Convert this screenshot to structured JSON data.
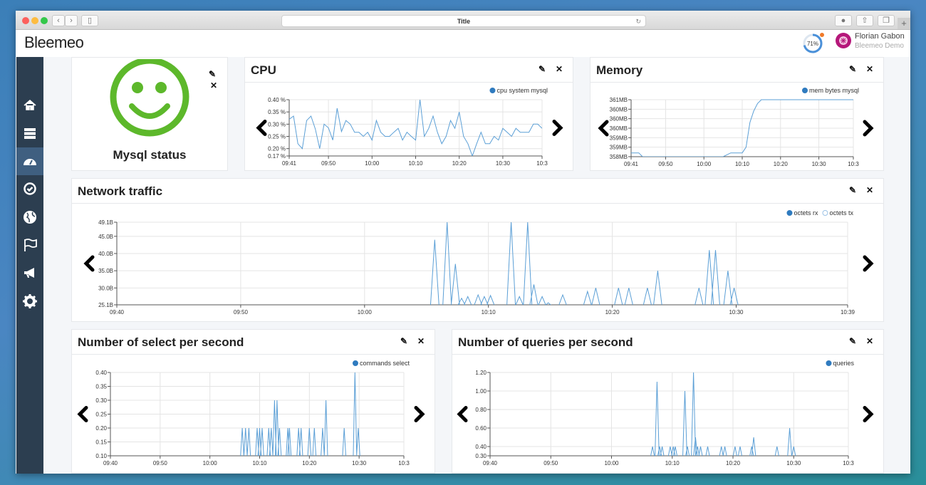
{
  "browser": {
    "title": "Title"
  },
  "app": {
    "logo": "Bleemeo",
    "gauge_percent": 71,
    "gauge_label": "71%",
    "user_name": "Florian Gabon",
    "user_org": "Bleemeo Demo"
  },
  "sidebar": {
    "items": [
      {
        "icon": "home-icon"
      },
      {
        "icon": "servers-icon"
      },
      {
        "icon": "dashboard-icon",
        "active": true
      },
      {
        "icon": "check-circle-icon"
      },
      {
        "icon": "globe-icon"
      },
      {
        "icon": "flag-icon"
      },
      {
        "icon": "megaphone-icon"
      },
      {
        "icon": "gear-icon"
      }
    ]
  },
  "colors": {
    "accent": "#2f7bbf",
    "line": "#5b9fd6",
    "status_ok": "#5db82b",
    "sidebar": "#2c3e50",
    "sidebar_active": "#3f5f80"
  },
  "status_widget": {
    "label": "Mysql status",
    "state": "ok",
    "icon": "smiley-icon"
  },
  "panels": {
    "cpu": "CPU",
    "memory": "Memory",
    "network": "Network traffic",
    "select": "Number of select per second",
    "queries": "Number of queries per second"
  },
  "chart_data": [
    {
      "id": "cpu",
      "type": "line",
      "title": "CPU",
      "legend": [
        {
          "name": "cpu system mysql",
          "style": "filled"
        }
      ],
      "legend_position": "top-right",
      "grid": true,
      "xlim": [
        "09:41",
        "10:39"
      ],
      "ylim": [
        0.17,
        0.4
      ],
      "xticks": [
        {
          "t": "09:41",
          "label": "09:41"
        },
        {
          "t": "09:50",
          "label": "09:50"
        },
        {
          "t": "10:00",
          "label": "10:00"
        },
        {
          "t": "10:10",
          "label": "10:10"
        },
        {
          "t": "10:20",
          "label": "10:20"
        },
        {
          "t": "10:30",
          "label": "10:30"
        },
        {
          "t": "10:39",
          "label": "10:3"
        }
      ],
      "yticks": [
        {
          "v": 0.17,
          "label": "0.17 %"
        },
        {
          "v": 0.2,
          "label": "0.20 %"
        },
        {
          "v": 0.25,
          "label": "0.25 %"
        },
        {
          "v": 0.3,
          "label": "0.30 %"
        },
        {
          "v": 0.35,
          "label": "0.35 %"
        },
        {
          "v": 0.4,
          "label": "0.40 %"
        }
      ],
      "series": [
        {
          "name": "cpu system mysql",
          "start": "09:41",
          "step_minutes": 1,
          "values": [
            0.32,
            0.333,
            0.22,
            0.2,
            0.315,
            0.333,
            0.28,
            0.2,
            0.3,
            0.285,
            0.235,
            0.365,
            0.27,
            0.315,
            0.3,
            0.267,
            0.267,
            0.25,
            0.267,
            0.235,
            0.315,
            0.267,
            0.25,
            0.25,
            0.267,
            0.283,
            0.235,
            0.267,
            0.25,
            0.235,
            0.4,
            0.25,
            0.283,
            0.333,
            0.267,
            0.22,
            0.25,
            0.315,
            0.283,
            0.35,
            0.25,
            0.22,
            0.17,
            0.22,
            0.267,
            0.22,
            0.22,
            0.25,
            0.235,
            0.283,
            0.267,
            0.25,
            0.283,
            0.267,
            0.267,
            0.267,
            0.3,
            0.3,
            0.283
          ]
        }
      ]
    },
    {
      "id": "memory",
      "type": "line",
      "title": "Memory",
      "legend": [
        {
          "name": "mem bytes mysql",
          "style": "filled"
        }
      ],
      "legend_position": "top-right",
      "grid": true,
      "xlim": [
        "09:41",
        "10:39"
      ],
      "ylim": [
        358,
        361
      ],
      "xticks": [
        {
          "t": "09:41",
          "label": "09:41"
        },
        {
          "t": "09:50",
          "label": "09:50"
        },
        {
          "t": "10:00",
          "label": "10:00"
        },
        {
          "t": "10:10",
          "label": "10:10"
        },
        {
          "t": "10:20",
          "label": "10:20"
        },
        {
          "t": "10:30",
          "label": "10:30"
        },
        {
          "t": "10:39",
          "label": "10:3"
        }
      ],
      "yticks": [
        {
          "v": 358,
          "label": "358MB"
        },
        {
          "v": 358.5,
          "label": "359MB"
        },
        {
          "v": 359,
          "label": "359MB"
        },
        {
          "v": 359.5,
          "label": "360MB"
        },
        {
          "v": 360,
          "label": "360MB"
        },
        {
          "v": 360.5,
          "label": "360MB"
        },
        {
          "v": 361,
          "label": "361MB"
        }
      ],
      "series": [
        {
          "name": "mem bytes mysql",
          "points": [
            [
              "09:41",
              358.2
            ],
            [
              "09:43",
              358.2
            ],
            [
              "09:44",
              358.0
            ],
            [
              "10:05",
              358.0
            ],
            [
              "10:07",
              358.2
            ],
            [
              "10:10",
              358.2
            ],
            [
              "10:11",
              358.5
            ],
            [
              "10:12",
              359.8
            ],
            [
              "10:13",
              360.4
            ],
            [
              "10:14",
              360.8
            ],
            [
              "10:15",
              361
            ],
            [
              "10:39",
              361
            ]
          ]
        }
      ]
    },
    {
      "id": "network",
      "type": "line",
      "title": "Network traffic",
      "legend": [
        {
          "name": "octets rx",
          "style": "filled"
        },
        {
          "name": "octets tx",
          "style": "hollow"
        }
      ],
      "legend_position": "top-right",
      "grid": true,
      "xlim": [
        "09:40",
        "10:39"
      ],
      "ylim": [
        25.1,
        49.1
      ],
      "xticks": [
        {
          "t": "09:40",
          "label": "09:40"
        },
        {
          "t": "09:50",
          "label": "09:50"
        },
        {
          "t": "10:00",
          "label": "10:00"
        },
        {
          "t": "10:10",
          "label": "10:10"
        },
        {
          "t": "10:20",
          "label": "10:20"
        },
        {
          "t": "10:30",
          "label": "10:30"
        },
        {
          "t": "10:39",
          "label": "10:39"
        }
      ],
      "yticks": [
        {
          "v": 25.1,
          "label": "25.1B"
        },
        {
          "v": 30,
          "label": "30.0B"
        },
        {
          "v": 35,
          "label": "35.0B"
        },
        {
          "v": 40,
          "label": "40.0B"
        },
        {
          "v": 45,
          "label": "45.0B"
        },
        {
          "v": 49.1,
          "label": "49.1B"
        }
      ],
      "series": [
        {
          "name": "octets rx",
          "spikes": [
            [
              "10:05:40",
              44
            ],
            [
              "10:06:40",
              49.1
            ],
            [
              "10:07:20",
              37
            ],
            [
              "10:07:50",
              27
            ],
            [
              "10:08:20",
              27.5
            ],
            [
              "10:09:10",
              28
            ],
            [
              "10:09:40",
              27.5
            ],
            [
              "10:10:10",
              27.8
            ],
            [
              "10:11:50",
              49.1
            ],
            [
              "10:12:30",
              27.5
            ],
            [
              "10:13:10",
              49.1
            ],
            [
              "10:13:40",
              31
            ],
            [
              "10:14:20",
              27.5
            ],
            [
              "10:14:50",
              25.7
            ],
            [
              "10:16:00",
              28
            ],
            [
              "10:18:00",
              29
            ],
            [
              "10:18:40",
              30
            ],
            [
              "10:20:30",
              30
            ],
            [
              "10:21:20",
              30
            ],
            [
              "10:22:50",
              30
            ],
            [
              "10:23:40",
              35
            ],
            [
              "10:27:00",
              30
            ],
            [
              "10:27:50",
              41
            ],
            [
              "10:28:20",
              41
            ],
            [
              "10:29:20",
              35
            ],
            [
              "10:29:50",
              30
            ]
          ]
        }
      ]
    },
    {
      "id": "select",
      "type": "line",
      "title": "Number of select per second",
      "legend": [
        {
          "name": "commands select",
          "style": "filled"
        }
      ],
      "legend_position": "top-right",
      "grid": true,
      "xlim": [
        "09:40",
        "10:39"
      ],
      "ylim": [
        0.1,
        0.4
      ],
      "xticks": [
        {
          "t": "09:40",
          "label": "09:40"
        },
        {
          "t": "09:50",
          "label": "09:50"
        },
        {
          "t": "10:00",
          "label": "10:00"
        },
        {
          "t": "10:10",
          "label": "10:10"
        },
        {
          "t": "10:20",
          "label": "10:20"
        },
        {
          "t": "10:30",
          "label": "10:30"
        },
        {
          "t": "10:39",
          "label": "10:3"
        }
      ],
      "yticks": [
        {
          "v": 0.1,
          "label": "0.10"
        },
        {
          "v": 0.15,
          "label": "0.15"
        },
        {
          "v": 0.2,
          "label": "0.20"
        },
        {
          "v": 0.25,
          "label": "0.25"
        },
        {
          "v": 0.3,
          "label": "0.30"
        },
        {
          "v": 0.35,
          "label": "0.35"
        },
        {
          "v": 0.4,
          "label": "0.40"
        }
      ],
      "series": [
        {
          "name": "commands select",
          "spikes": [
            [
              "10:06:30",
              0.2
            ],
            [
              "10:07:10",
              0.2
            ],
            [
              "10:07:50",
              0.2
            ],
            [
              "10:09:30",
              0.2
            ],
            [
              "10:10:00",
              0.2
            ],
            [
              "10:10:30",
              0.2
            ],
            [
              "10:11:50",
              0.2
            ],
            [
              "10:12:20",
              0.2
            ],
            [
              "10:13:00",
              0.3
            ],
            [
              "10:13:30",
              0.3
            ],
            [
              "10:14:00",
              0.2
            ],
            [
              "10:15:40",
              0.2
            ],
            [
              "10:16:00",
              0.2
            ],
            [
              "10:17:50",
              0.2
            ],
            [
              "10:18:20",
              0.2
            ],
            [
              "10:20:00",
              0.2
            ],
            [
              "10:21:00",
              0.2
            ],
            [
              "10:22:40",
              0.2
            ],
            [
              "10:23:20",
              0.3
            ],
            [
              "10:27:00",
              0.2
            ],
            [
              "10:29:10",
              0.4
            ],
            [
              "10:29:50",
              0.2
            ]
          ]
        }
      ]
    },
    {
      "id": "queries",
      "type": "line",
      "title": "Number of queries per second",
      "legend": [
        {
          "name": "queries",
          "style": "filled"
        }
      ],
      "legend_position": "top-right",
      "grid": true,
      "xlim": [
        "09:40",
        "10:39"
      ],
      "ylim": [
        0.3,
        1.2
      ],
      "xticks": [
        {
          "t": "09:40",
          "label": "09:40"
        },
        {
          "t": "09:50",
          "label": "09:50"
        },
        {
          "t": "10:00",
          "label": "10:00"
        },
        {
          "t": "10:10",
          "label": "10:10"
        },
        {
          "t": "10:20",
          "label": "10:20"
        },
        {
          "t": "10:30",
          "label": "10:30"
        },
        {
          "t": "10:39",
          "label": "10:3"
        }
      ],
      "yticks": [
        {
          "v": 0.3,
          "label": "0.30"
        },
        {
          "v": 0.4,
          "label": "0.40"
        },
        {
          "v": 0.6,
          "label": "0.60"
        },
        {
          "v": 0.8,
          "label": "0.80"
        },
        {
          "v": 1.0,
          "label": "1.00"
        },
        {
          "v": 1.2,
          "label": "1.20"
        }
      ],
      "series": [
        {
          "name": "queries",
          "spikes": [
            [
              "10:06:45",
              0.4
            ],
            [
              "10:07:30",
              1.1
            ],
            [
              "10:07:55",
              0.4
            ],
            [
              "10:08:20",
              0.4
            ],
            [
              "10:09:40",
              0.4
            ],
            [
              "10:10:10",
              0.4
            ],
            [
              "10:10:30",
              0.4
            ],
            [
              "10:12:05",
              1.0
            ],
            [
              "10:12:30",
              0.4
            ],
            [
              "10:13:30",
              1.2
            ],
            [
              "10:13:50",
              0.5
            ],
            [
              "10:14:10",
              0.4
            ],
            [
              "10:14:40",
              0.4
            ],
            [
              "10:15:50",
              0.4
            ],
            [
              "10:18:05",
              0.4
            ],
            [
              "10:18:40",
              0.4
            ],
            [
              "10:20:20",
              0.4
            ],
            [
              "10:21:10",
              0.4
            ],
            [
              "10:23:05",
              0.4
            ],
            [
              "10:23:25",
              0.5
            ],
            [
              "10:27:15",
              0.4
            ],
            [
              "10:29:20",
              0.6
            ],
            [
              "10:30:00",
              0.4
            ]
          ]
        }
      ]
    }
  ]
}
